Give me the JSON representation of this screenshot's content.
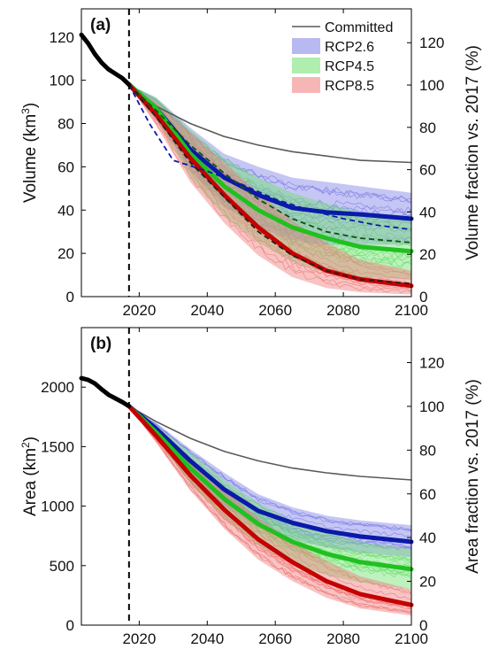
{
  "chart_data": [
    {
      "type": "line",
      "panel_label": "(a)",
      "ylabel_base": "Volume (km",
      "ylabel_sup": "3",
      "ylabel_end": ")",
      "ylabel_right": "Volume fraction vs. 2017 (%)",
      "xlim": [
        2003,
        2100
      ],
      "ylim": [
        0,
        133
      ],
      "right_ylim": [
        0,
        136
      ],
      "xticks": [
        2020,
        2040,
        2060,
        2080,
        2100
      ],
      "yticks": [
        0,
        20,
        40,
        60,
        80,
        100,
        120
      ],
      "right_yticks": [
        0,
        20,
        40,
        60,
        80,
        100,
        120
      ],
      "vline_x": 2017,
      "historical": {
        "x": [
          2003,
          2005,
          2007,
          2009,
          2011,
          2013,
          2015,
          2017
        ],
        "y": [
          121,
          117,
          112,
          108,
          105,
          103,
          101,
          98
        ]
      },
      "series": [
        {
          "name": "Committed",
          "color": "#5a5a5a",
          "x": [
            2017,
            2025,
            2035,
            2045,
            2055,
            2065,
            2075,
            2085,
            2100
          ],
          "y": [
            98,
            88,
            80,
            74,
            70,
            67,
            65,
            63,
            62
          ]
        },
        {
          "name": "RCP2.6",
          "color": "#0a1aa8",
          "band_color": "#7f80e6",
          "x": [
            2017,
            2025,
            2035,
            2045,
            2055,
            2065,
            2075,
            2085,
            2100
          ],
          "y": [
            98,
            87,
            68,
            55,
            47,
            41,
            39,
            38,
            36
          ],
          "lower": [
            98,
            83,
            58,
            42,
            32,
            26,
            24,
            24,
            24
          ],
          "upper": [
            98,
            92,
            78,
            66,
            60,
            55,
            53,
            51,
            48
          ]
        },
        {
          "name": "RCP4.5",
          "color": "#20c020",
          "band_color": "#6ee06e",
          "x": [
            2017,
            2025,
            2035,
            2045,
            2055,
            2065,
            2075,
            2085,
            2100
          ],
          "y": [
            98,
            87,
            66,
            51,
            40,
            32,
            27,
            23,
            21
          ],
          "lower": [
            98,
            82,
            55,
            37,
            25,
            16,
            11,
            9,
            8
          ],
          "upper": [
            98,
            92,
            77,
            64,
            55,
            48,
            43,
            39,
            35
          ]
        },
        {
          "name": "RCP8.5",
          "color": "#c40000",
          "band_color": "#f07a7a",
          "x": [
            2017,
            2025,
            2035,
            2045,
            2055,
            2065,
            2075,
            2085,
            2100
          ],
          "y": [
            98,
            84,
            64,
            47,
            32,
            20,
            12,
            8,
            5
          ],
          "lower": [
            98,
            79,
            53,
            34,
            19,
            9,
            4,
            2,
            1
          ],
          "upper": [
            98,
            90,
            76,
            62,
            48,
            35,
            25,
            17,
            12
          ]
        }
      ],
      "dashed_series": [
        {
          "color": "#0a1aa8",
          "x": [
            2017,
            2023,
            2030,
            2040,
            2050,
            2060,
            2070,
            2080,
            2090,
            2100
          ],
          "y": [
            98,
            80,
            63,
            58,
            52,
            45,
            40,
            36,
            33,
            31
          ]
        },
        {
          "color": "#105010",
          "x": [
            2017,
            2025,
            2035,
            2045,
            2055,
            2065,
            2075,
            2085,
            2100
          ],
          "y": [
            98,
            86,
            70,
            57,
            45,
            36,
            30,
            27,
            25
          ]
        },
        {
          "color": "#202020",
          "x": [
            2017,
            2025,
            2035,
            2045,
            2055,
            2065,
            2075,
            2085,
            2100
          ],
          "y": [
            98,
            83,
            62,
            46,
            30,
            19,
            12,
            8,
            6
          ]
        }
      ]
    },
    {
      "type": "line",
      "panel_label": "(b)",
      "ylabel_base": "Area (km",
      "ylabel_sup": "2",
      "ylabel_end": ")",
      "ylabel_right": "Area fraction vs. 2017 (%)",
      "xlim": [
        2003,
        2100
      ],
      "ylim": [
        0,
        2500
      ],
      "right_ylim": [
        0,
        136
      ],
      "xticks": [
        2020,
        2040,
        2060,
        2080,
        2100
      ],
      "yticks": [
        0,
        500,
        1000,
        1500,
        2000
      ],
      "right_yticks": [
        0,
        20,
        40,
        60,
        80,
        100,
        120
      ],
      "vline_x": 2017,
      "historical": {
        "x": [
          2003,
          2005,
          2007,
          2009,
          2011,
          2013,
          2015,
          2017
        ],
        "y": [
          2075,
          2060,
          2030,
          1980,
          1935,
          1905,
          1875,
          1840
        ]
      },
      "series": [
        {
          "name": "Committed",
          "color": "#5a5a5a",
          "x": [
            2017,
            2025,
            2035,
            2045,
            2055,
            2065,
            2075,
            2085,
            2100
          ],
          "y": [
            1840,
            1710,
            1570,
            1460,
            1380,
            1320,
            1280,
            1250,
            1220
          ]
        },
        {
          "name": "RCP2.6",
          "color": "#0a1aa8",
          "band_color": "#7f80e6",
          "x": [
            2017,
            2025,
            2035,
            2045,
            2055,
            2065,
            2075,
            2085,
            2100
          ],
          "y": [
            1840,
            1650,
            1380,
            1140,
            960,
            860,
            790,
            745,
            700
          ],
          "lower": [
            1840,
            1600,
            1270,
            1000,
            820,
            720,
            650,
            610,
            570
          ],
          "upper": [
            1840,
            1700,
            1480,
            1280,
            1100,
            990,
            920,
            880,
            840
          ]
        },
        {
          "name": "RCP4.5",
          "color": "#20c020",
          "band_color": "#6ee06e",
          "x": [
            2017,
            2025,
            2035,
            2045,
            2055,
            2065,
            2075,
            2085,
            2100
          ],
          "y": [
            1840,
            1620,
            1320,
            1060,
            850,
            700,
            600,
            530,
            470
          ],
          "lower": [
            1840,
            1560,
            1190,
            900,
            670,
            520,
            420,
            360,
            300
          ],
          "upper": [
            1840,
            1680,
            1450,
            1220,
            1030,
            880,
            780,
            700,
            640
          ]
        },
        {
          "name": "RCP8.5",
          "color": "#c40000",
          "band_color": "#f07a7a",
          "x": [
            2017,
            2025,
            2035,
            2045,
            2055,
            2065,
            2075,
            2085,
            2100
          ],
          "y": [
            1840,
            1590,
            1260,
            970,
            720,
            530,
            370,
            260,
            170
          ],
          "lower": [
            1840,
            1530,
            1130,
            810,
            550,
            370,
            230,
            140,
            80
          ],
          "upper": [
            1840,
            1650,
            1390,
            1130,
            900,
            710,
            540,
            410,
            300
          ]
        }
      ],
      "dashed_series": []
    }
  ]
}
